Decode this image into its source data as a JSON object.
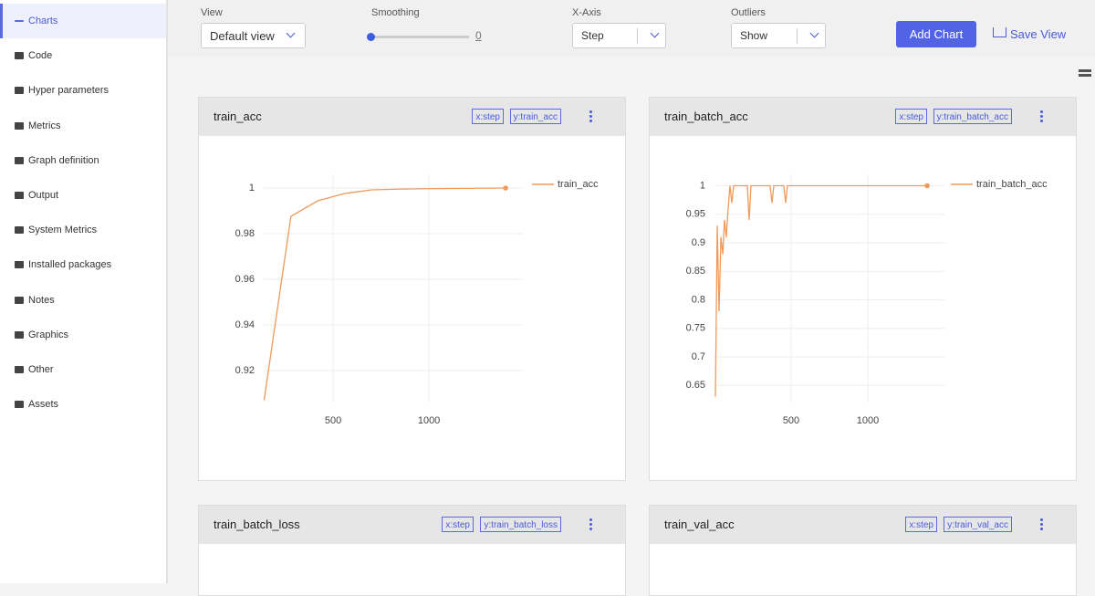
{
  "sidebar": {
    "items": [
      "Charts",
      "Code",
      "Hyper parameters",
      "Metrics",
      "Graph definition",
      "Output",
      "System Metrics",
      "Installed packages",
      "Notes",
      "Graphics",
      "Other",
      "Assets"
    ],
    "active": 0
  },
  "toolbar": {
    "view": {
      "label": "View",
      "value": "Default view"
    },
    "smoothing": {
      "label": "Smoothing",
      "value": 0
    },
    "xaxis": {
      "label": "X-Axis",
      "value": "Step"
    },
    "outliers": {
      "label": "Outliers",
      "value": "Show"
    },
    "add_chart": "Add Chart",
    "save_view": "Save View"
  },
  "panels": [
    {
      "title": "train_acc",
      "tags": [
        "x:step",
        "y:train_acc"
      ]
    },
    {
      "title": "train_batch_acc",
      "tags": [
        "x:step",
        "y:train_batch_acc"
      ]
    },
    {
      "title": "train_batch_loss",
      "tags": [
        "x:step",
        "y:train_batch_loss"
      ]
    },
    {
      "title": "train_val_acc",
      "tags": [
        "x:step",
        "y:train_val_acc"
      ]
    }
  ],
  "chart_data": [
    {
      "type": "line",
      "x": [
        140,
        280,
        420,
        560,
        700,
        840,
        980,
        1120,
        1260,
        1400
      ],
      "series": [
        {
          "name": "train_acc",
          "color": "#ee9a5c",
          "values": [
            0.907,
            0.9876,
            0.9944,
            0.9976,
            0.9992,
            0.9995,
            0.9997,
            0.9998,
            0.9999,
            1
          ]
        }
      ],
      "xlim": [
        138,
        1490
      ],
      "ylim": [
        0.906,
        1.006
      ],
      "xticks": [
        500,
        1000
      ],
      "yticks": [
        0.92,
        0.94,
        0.96,
        0.98,
        1
      ],
      "grid": true
    },
    {
      "type": "line",
      "x": [
        6,
        18,
        30,
        42,
        54,
        65,
        77,
        89,
        101,
        113,
        125,
        214,
        226,
        238,
        363,
        375,
        387,
        452,
        464,
        476,
        1387
      ],
      "series": [
        {
          "name": "train_batch_acc",
          "color": "#ee9a5c",
          "values": [
            0.63,
            0.93,
            0.78,
            0.91,
            0.88,
            0.94,
            0.91,
            0.96,
            1,
            0.97,
            1,
            1,
            0.94,
            1,
            1,
            0.97,
            1,
            1,
            0.97,
            1,
            1
          ]
        }
      ],
      "xlim": [
        0,
        1500
      ],
      "ylim": [
        0.62,
        1.02
      ],
      "xticks": [
        500,
        1000
      ],
      "yticks": [
        0.65,
        0.7,
        0.75,
        0.8,
        0.85,
        0.9,
        0.95,
        1
      ],
      "grid": true
    }
  ]
}
